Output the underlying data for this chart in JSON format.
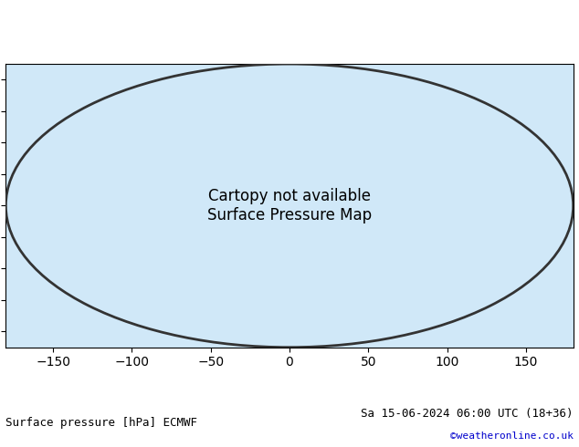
{
  "title_left": "Surface pressure [hPa] ECMWF",
  "title_right": "Sa 15-06-2024 06:00 UTC (18+36)",
  "watermark": "©weatheronline.co.uk",
  "bg_color": "#ffffff",
  "map_bg": "#d0e8f8",
  "land_color": "#c8e6c0",
  "land_edge": "#333333",
  "contour_base_color": "#000000",
  "contour_high_color": "#cc0000",
  "contour_low_color": "#0000cc",
  "contour_interval": 4,
  "label_fontsize": 7,
  "title_fontsize": 9,
  "watermark_color": "#0000cc",
  "fig_width": 6.34,
  "fig_height": 4.9,
  "dpi": 100
}
